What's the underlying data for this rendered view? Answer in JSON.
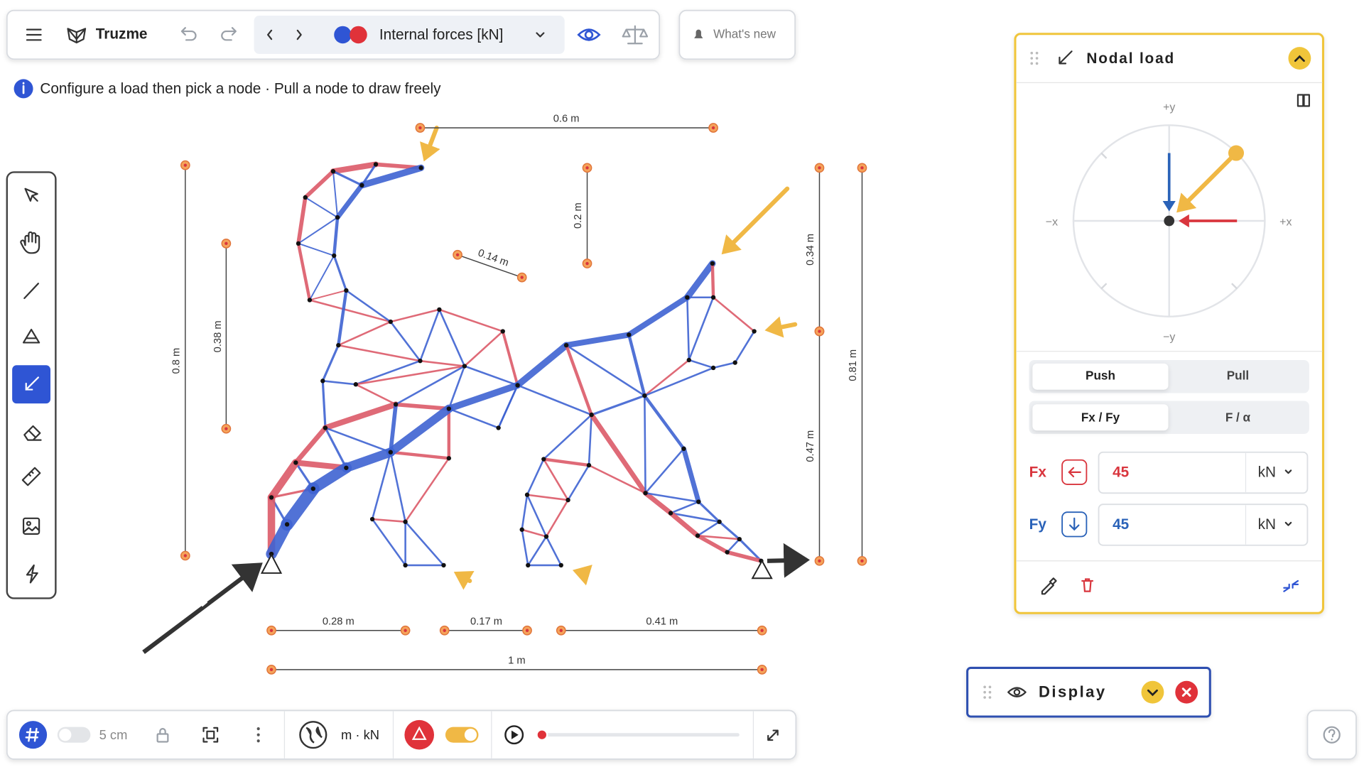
{
  "toolbar": {
    "app_name": "Truzme",
    "result_view": "Internal forces [kN]",
    "whats_new": "What's new"
  },
  "hint": "Configure a load then pick a node · Pull a node to draw freely",
  "dimensions": [
    "0.6 m",
    "0.2 m",
    "0.14 m",
    "0.8 m",
    "0.38 m",
    "0.34 m",
    "0.81 m",
    "0.47 m",
    "0.28 m",
    "0.17 m",
    "0.41 m",
    "1 m"
  ],
  "nodal_load_panel": {
    "title": "Nodal load",
    "axes": {
      "plus_y": "+y",
      "minus_x": "−x",
      "plus_x": "+x",
      "minus_y": "−y"
    },
    "direction_options": [
      "Push",
      "Pull"
    ],
    "input_modes": [
      "Fx / Fy",
      "F / α"
    ],
    "fx": {
      "label": "Fx",
      "value": "45",
      "unit": "kN"
    },
    "fy": {
      "label": "Fy",
      "value": "45",
      "unit": "kN"
    }
  },
  "display_panel": {
    "title": "Display"
  },
  "bottom_bar": {
    "grid_size": "5 cm",
    "units": "m · kN"
  }
}
